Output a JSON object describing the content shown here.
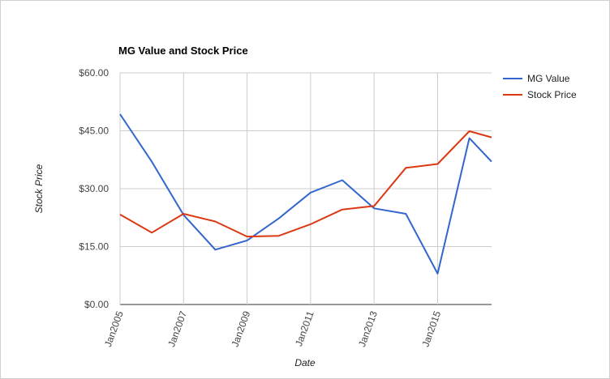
{
  "chart_data": {
    "type": "line",
    "title": "MG Value and Stock Price",
    "xlabel": "Date",
    "ylabel": "Stock Price",
    "x_ticks": [
      "Jan2005",
      "Jan2007",
      "Jan2009",
      "Jan2011",
      "Jan2013",
      "Jan2015"
    ],
    "y_ticks": [
      "$0.00",
      "$15.00",
      "$30.00",
      "$45.00",
      "$60.00"
    ],
    "ylim": [
      0,
      60
    ],
    "xlim": [
      2005,
      2016.7
    ],
    "grid": true,
    "legend_position": "right",
    "x": [
      2005,
      2006,
      2007,
      2008,
      2009,
      2010,
      2011,
      2012,
      2013,
      2014,
      2015,
      2016,
      2016.7
    ],
    "series": [
      {
        "name": "MG Value",
        "color": "#3366cc",
        "values": [
          49.3,
          37.0,
          23.2,
          14.2,
          16.6,
          22.3,
          29.0,
          32.2,
          24.9,
          23.5,
          8.0,
          43.1,
          37.0
        ]
      },
      {
        "name": "Stock Price",
        "color": "#dc3912",
        "values": [
          23.3,
          18.6,
          23.5,
          21.5,
          17.6,
          17.8,
          20.8,
          24.6,
          25.5,
          35.4,
          36.4,
          44.9,
          43.3
        ]
      }
    ]
  }
}
